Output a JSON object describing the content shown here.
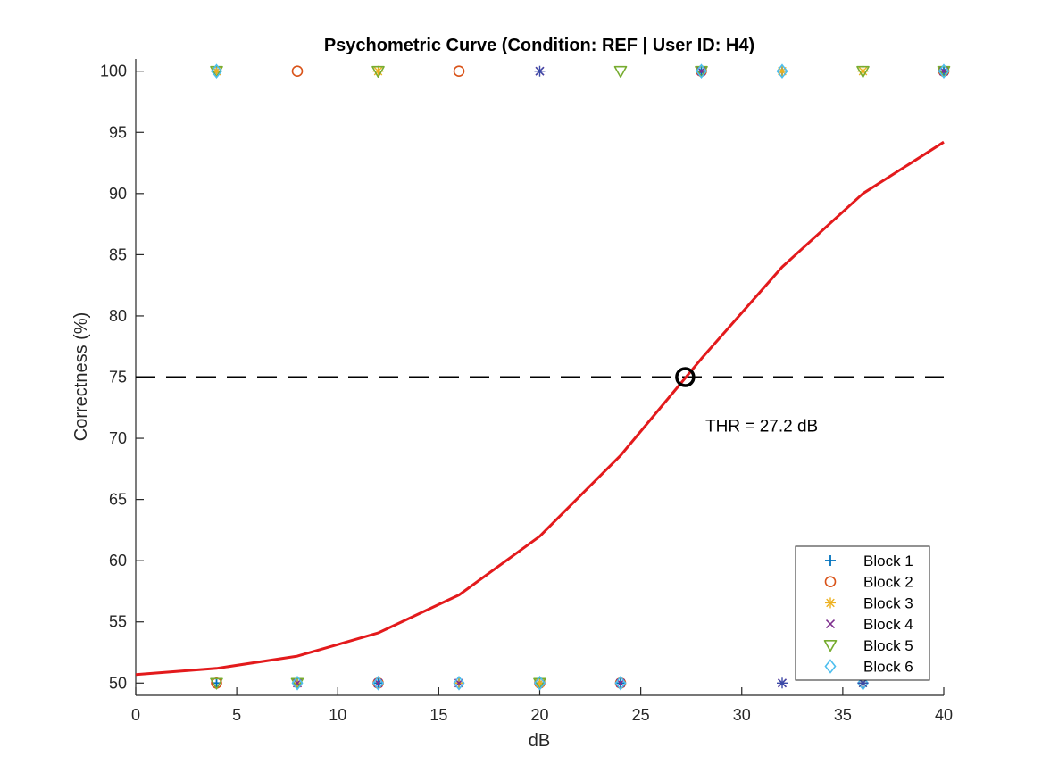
{
  "chart_data": {
    "type": "line",
    "title": "Psychometric Curve (Condition: REF | User ID: H4)",
    "xlabel": "dB",
    "ylabel": "Correctness (%)",
    "xlim": [
      0,
      40
    ],
    "ylim": [
      49,
      101
    ],
    "x_ticks": [
      0,
      5,
      10,
      15,
      20,
      25,
      30,
      35,
      40
    ],
    "y_ticks": [
      50,
      55,
      60,
      65,
      70,
      75,
      80,
      85,
      90,
      95,
      100
    ],
    "grid": false,
    "legend_position": "bottom-right",
    "fitted_curve": {
      "color": "#e31a1c",
      "x": [
        0,
        4,
        8,
        12,
        16,
        20,
        24,
        28,
        32,
        36,
        40
      ],
      "y": [
        50.7,
        51.2,
        52.2,
        54.1,
        57.2,
        62.0,
        68.6,
        76.5,
        84.0,
        90.0,
        94.2
      ]
    },
    "threshold_line": {
      "y": 75,
      "color": "#000000"
    },
    "threshold_point": {
      "x": 27.2,
      "y": 75
    },
    "annotation": {
      "text": "THR = 27.2 dB",
      "x": 28.2,
      "y": 71
    },
    "series": [
      {
        "name": "Block 1",
        "marker": "plus",
        "color": "#0072bd",
        "points": [
          [
            4,
            100
          ],
          [
            28,
            100
          ],
          [
            32,
            100
          ],
          [
            40,
            100
          ],
          [
            4,
            50
          ],
          [
            8,
            50
          ],
          [
            12,
            50
          ],
          [
            16,
            50
          ],
          [
            20,
            50
          ],
          [
            24,
            50
          ],
          [
            36,
            50
          ]
        ]
      },
      {
        "name": "Block 2",
        "marker": "circle",
        "color": "#d95319",
        "points": [
          [
            8,
            100
          ],
          [
            16,
            100
          ],
          [
            28,
            100
          ],
          [
            40,
            100
          ],
          [
            4,
            50
          ],
          [
            12,
            50
          ],
          [
            20,
            50
          ],
          [
            24,
            50
          ]
        ]
      },
      {
        "name": "Block 3",
        "marker": "asterisk",
        "color": "#edb120",
        "points": [
          [
            4,
            100
          ],
          [
            12,
            100
          ],
          [
            32,
            100
          ],
          [
            36,
            100
          ],
          [
            8,
            50
          ],
          [
            16,
            50
          ],
          [
            20,
            50
          ],
          [
            36,
            50
          ]
        ]
      },
      {
        "name": "Block 4",
        "marker": "x",
        "color": "#7e2f8e",
        "points": [
          [
            20,
            100
          ],
          [
            28,
            100
          ],
          [
            40,
            100
          ],
          [
            8,
            50
          ],
          [
            12,
            50
          ],
          [
            16,
            50
          ],
          [
            24,
            50
          ],
          [
            32,
            50
          ]
        ]
      },
      {
        "name": "Block 5",
        "marker": "triangle-down",
        "color": "#77ac30",
        "points": [
          [
            4,
            100
          ],
          [
            12,
            100
          ],
          [
            24,
            100
          ],
          [
            28,
            100
          ],
          [
            36,
            100
          ],
          [
            40,
            100
          ],
          [
            4,
            50
          ],
          [
            8,
            50
          ],
          [
            20,
            50
          ]
        ]
      },
      {
        "name": "Block 6",
        "marker": "diamond",
        "color": "#4dbeee",
        "points": [
          [
            4,
            100
          ],
          [
            28,
            100
          ],
          [
            32,
            100
          ],
          [
            40,
            100
          ],
          [
            8,
            50
          ],
          [
            12,
            50
          ],
          [
            16,
            50
          ],
          [
            20,
            50
          ],
          [
            24,
            50
          ],
          [
            36,
            50
          ]
        ]
      }
    ],
    "extra_markers": [
      {
        "marker": "asterisk",
        "color": "#3b4ba8",
        "points": [
          [
            20,
            100
          ],
          [
            32,
            50
          ],
          [
            36,
            50
          ]
        ]
      }
    ]
  }
}
